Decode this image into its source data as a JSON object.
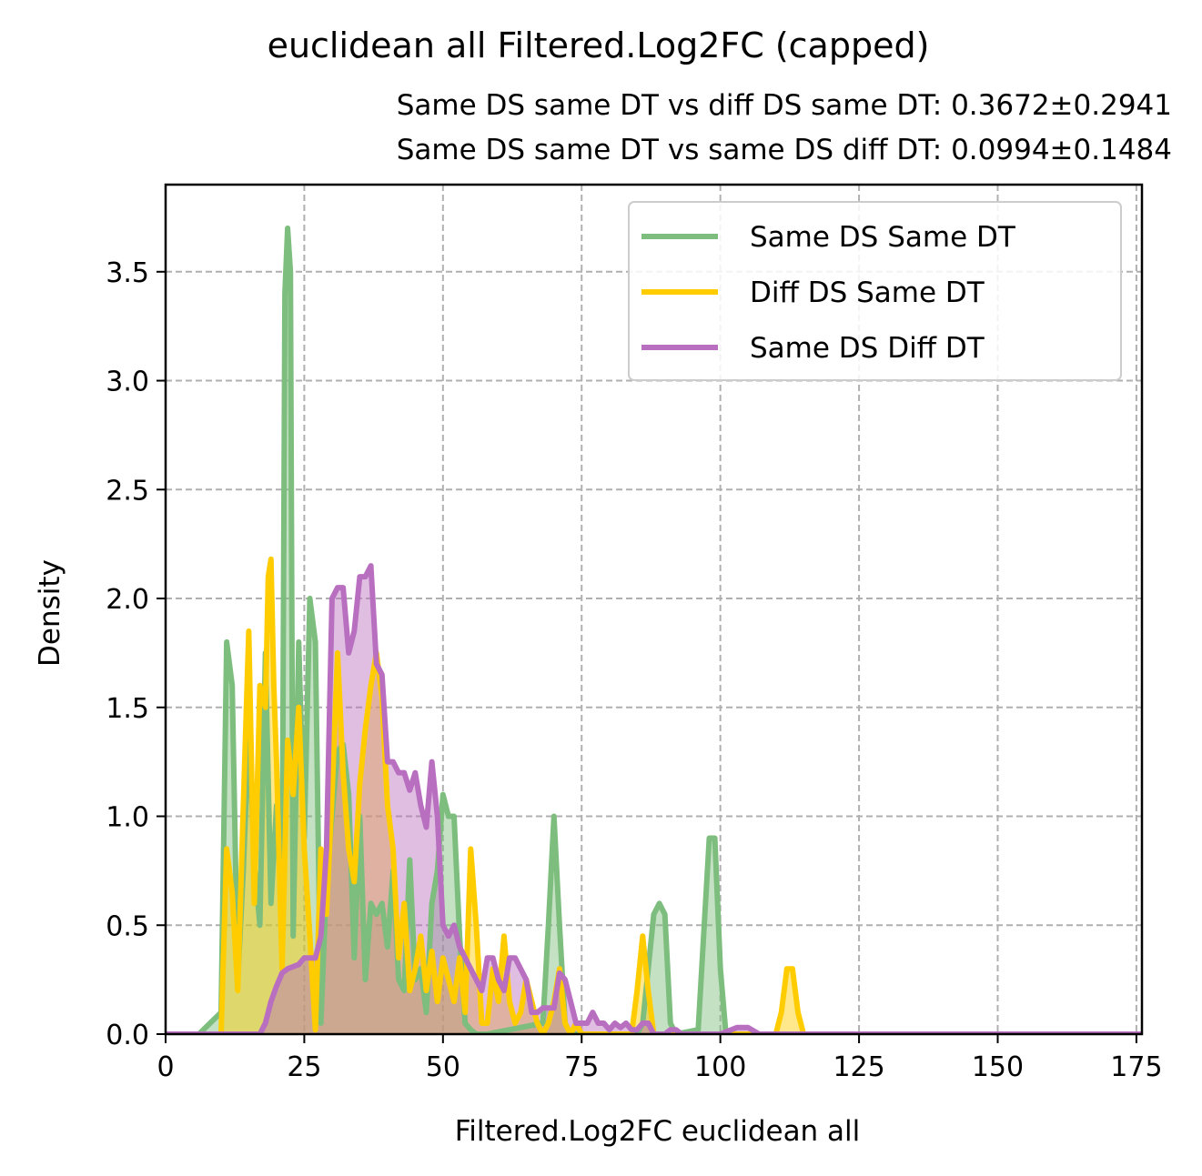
{
  "chart_data": {
    "type": "area",
    "title": "euclidean all Filtered.Log2FC (capped)",
    "subtitle_lines": [
      "Same DS same DT vs diff DS same DT: 0.3672±0.2941",
      "Same DS same DT vs same DS diff DT: 0.0994±0.1484"
    ],
    "xlabel": "Filtered.Log2FC euclidean all",
    "ylabel": "Density",
    "xlim": [
      0,
      176
    ],
    "ylim": [
      0,
      3.9
    ],
    "xticks": [
      0,
      25,
      50,
      75,
      100,
      125,
      150,
      175
    ],
    "yticks": [
      0.0,
      0.5,
      1.0,
      1.5,
      2.0,
      2.5,
      3.0,
      3.5
    ],
    "xtick_labels": [
      "0",
      "25",
      "50",
      "75",
      "100",
      "125",
      "150",
      "175"
    ],
    "ytick_labels": [
      "0.0",
      "0.5",
      "1.0",
      "1.5",
      "2.0",
      "2.5",
      "3.0",
      "3.5"
    ],
    "grid": true,
    "legend_position": "top-right",
    "series": [
      {
        "name": "Same DS Same DT",
        "color": "#7dbd7d",
        "x": [
          0,
          6,
          8,
          10,
          11,
          12,
          13,
          14,
          15,
          16,
          17,
          18,
          19,
          20,
          21,
          21.5,
          22,
          22.5,
          23,
          24,
          25,
          26,
          27,
          28,
          29,
          30,
          31,
          32,
          33,
          34,
          35,
          36,
          37,
          38,
          39,
          40,
          41,
          42,
          43,
          44,
          45,
          46,
          47,
          48,
          49,
          50,
          51,
          52,
          53,
          54,
          55,
          56,
          58,
          68,
          69,
          70,
          71,
          72,
          73,
          85,
          86,
          88,
          89,
          90,
          91,
          92,
          96,
          98,
          99,
          100,
          101,
          176
        ],
        "y": [
          0,
          0,
          0.05,
          0.1,
          1.8,
          1.6,
          0.25,
          0.75,
          1.4,
          0.8,
          0.5,
          1.75,
          0.6,
          1.05,
          0.55,
          3.4,
          3.7,
          3.5,
          0.45,
          1.8,
          0.9,
          2.0,
          1.8,
          0.05,
          0.7,
          1.0,
          1.3,
          1.33,
          1.1,
          0.35,
          1.0,
          0.25,
          0.6,
          0.55,
          0.6,
          0.4,
          0.75,
          0.25,
          0.2,
          0.8,
          0.25,
          0.3,
          0.1,
          0.6,
          0.75,
          1.1,
          1.0,
          1.0,
          0.45,
          0.05,
          0.02,
          0.0,
          0.0,
          0.05,
          0.5,
          1.0,
          0.5,
          0.05,
          0.0,
          0.0,
          0.05,
          0.55,
          0.6,
          0.55,
          0.05,
          0.0,
          0.02,
          0.9,
          0.9,
          0.3,
          0.0,
          0
        ]
      },
      {
        "name": "Diff DS Same DT",
        "color": "#ffcc00",
        "x": [
          0,
          9,
          10,
          11,
          12,
          13,
          14,
          15,
          16,
          17,
          18,
          18.5,
          19,
          19.5,
          20,
          21,
          22,
          23,
          24,
          25,
          26,
          27,
          28,
          29,
          30,
          31,
          32,
          33,
          34,
          35,
          36,
          37,
          38,
          39,
          40,
          41,
          42,
          43,
          44,
          45,
          46,
          47,
          48,
          49,
          50,
          51,
          52,
          53,
          54,
          55,
          56,
          57,
          58,
          59,
          60,
          61,
          62,
          63,
          64,
          65,
          66,
          67,
          68,
          69,
          70,
          71,
          72,
          73,
          74,
          75,
          84,
          85,
          86,
          87,
          88,
          90,
          110,
          111,
          112,
          113,
          114,
          115,
          176
        ],
        "y": [
          0,
          0,
          0.0,
          0.85,
          0.65,
          0.2,
          1.05,
          1.85,
          0.6,
          1.6,
          1.5,
          2.1,
          2.18,
          1.6,
          1.25,
          0.3,
          1.35,
          1.1,
          1.5,
          0.85,
          0.45,
          0.02,
          0.85,
          0.55,
          1.1,
          1.75,
          1.2,
          0.85,
          0.7,
          1.15,
          1.4,
          1.6,
          1.75,
          1.55,
          1.05,
          0.85,
          0.35,
          0.6,
          0.2,
          0.3,
          0.45,
          0.2,
          0.38,
          0.15,
          0.35,
          0.25,
          0.15,
          0.35,
          0.1,
          0.85,
          0.5,
          0.05,
          0.05,
          0.3,
          0.15,
          0.45,
          0.15,
          0.05,
          0.1,
          0.25,
          0.15,
          0.05,
          0.0,
          0.05,
          0.15,
          0.3,
          0.05,
          0.0,
          0.05,
          0.0,
          0.0,
          0.2,
          0.45,
          0.2,
          0.0,
          0.0,
          0.0,
          0.1,
          0.3,
          0.3,
          0.1,
          0.0,
          0
        ]
      },
      {
        "name": "Same DS Diff DT",
        "color": "#b96fbf",
        "x": [
          0,
          15,
          17,
          18,
          19,
          20,
          21,
          22,
          24,
          25,
          26,
          27,
          28,
          29,
          30,
          31,
          32,
          33,
          34,
          35,
          36,
          37,
          38,
          39,
          40,
          41,
          42,
          43,
          44,
          45,
          46,
          47,
          48,
          49,
          50,
          51,
          52,
          53,
          54,
          55,
          56,
          57,
          58,
          59,
          60,
          61,
          62,
          63,
          64,
          65,
          66,
          67,
          68,
          70,
          71,
          72,
          73,
          74,
          75,
          76,
          77,
          78,
          79,
          80,
          81,
          82,
          83,
          84,
          85,
          86,
          87,
          88,
          89,
          90,
          91,
          92,
          93,
          94,
          95,
          96,
          100,
          103,
          105,
          107,
          109,
          176
        ],
        "y": [
          0,
          0,
          0.0,
          0.05,
          0.15,
          0.22,
          0.28,
          0.3,
          0.32,
          0.35,
          0.35,
          0.35,
          0.45,
          0.85,
          2.0,
          2.05,
          2.05,
          1.75,
          1.85,
          2.1,
          2.1,
          2.15,
          1.7,
          1.65,
          1.25,
          1.25,
          1.2,
          1.2,
          1.12,
          1.2,
          1.05,
          0.95,
          1.25,
          1.0,
          0.5,
          0.45,
          0.5,
          0.4,
          0.35,
          0.3,
          0.25,
          0.2,
          0.35,
          0.35,
          0.25,
          0.2,
          0.35,
          0.35,
          0.3,
          0.25,
          0.1,
          0.1,
          0.12,
          0.12,
          0.28,
          0.25,
          0.15,
          0.05,
          0.05,
          0.05,
          0.1,
          0.05,
          0.05,
          0.02,
          0.05,
          0.03,
          0.05,
          0.02,
          0.02,
          0.05,
          0.05,
          0.0,
          0.0,
          0.0,
          0.02,
          0.02,
          0.0,
          0.0,
          0.0,
          0.0,
          0.0,
          0.03,
          0.03,
          0.0,
          0.0,
          0
        ]
      }
    ]
  }
}
